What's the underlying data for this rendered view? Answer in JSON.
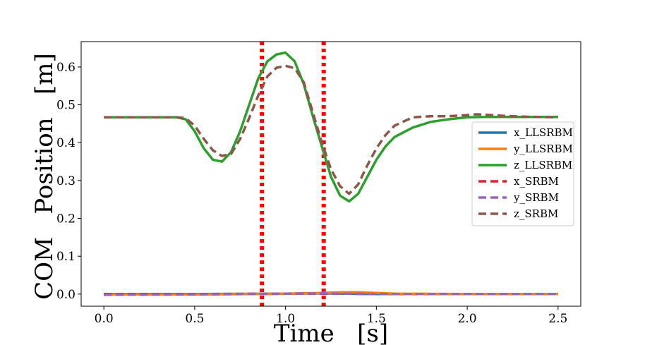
{
  "chart_data": {
    "type": "line",
    "title": "",
    "xlabel": "Time   [s]",
    "ylabel": "COM   Position   [m]",
    "xlim": [
      -0.125,
      2.625
    ],
    "ylim": [
      -0.032,
      0.667
    ],
    "xticks": [
      0.0,
      0.5,
      1.0,
      1.5,
      2.0,
      2.5
    ],
    "xtick_labels": [
      "0.0",
      "0.5",
      "1.0",
      "1.5",
      "2.0",
      "2.5"
    ],
    "yticks": [
      0.0,
      0.1,
      0.2,
      0.3,
      0.4,
      0.5,
      0.6
    ],
    "ytick_labels": [
      "0.0",
      "0.1",
      "0.2",
      "0.3",
      "0.4",
      "0.5",
      "0.6"
    ],
    "grid": false,
    "legend_position": "center-right",
    "vertical_lines": [
      {
        "x": 0.87,
        "color": "#ff0000",
        "style": "dotted"
      },
      {
        "x": 1.21,
        "color": "#ff0000",
        "style": "dotted"
      }
    ],
    "series": [
      {
        "name": "x_LLSRBM",
        "color": "#1f77b4",
        "style": "solid",
        "x": [
          0,
          0.5,
          1.0,
          1.2,
          1.35,
          1.5,
          2.0,
          2.5
        ],
        "y": [
          0.0,
          0.0,
          0.001,
          0.002,
          0.001,
          0.0,
          0.0,
          0.0
        ]
      },
      {
        "name": "y_LLSRBM",
        "color": "#ff7f0e",
        "style": "solid",
        "x": [
          0,
          0.5,
          1.0,
          1.2,
          1.3,
          1.4,
          1.5,
          1.6,
          2.0,
          2.5
        ],
        "y": [
          -0.001,
          -0.001,
          0.001,
          0.003,
          0.005,
          0.005,
          0.003,
          0.001,
          0.0,
          0.0
        ]
      },
      {
        "name": "z_LLSRBM",
        "color": "#2ca02c",
        "style": "solid",
        "x": [
          0,
          0.1,
          0.2,
          0.3,
          0.4,
          0.45,
          0.5,
          0.55,
          0.6,
          0.65,
          0.7,
          0.75,
          0.8,
          0.85,
          0.9,
          0.95,
          1.0,
          1.05,
          1.1,
          1.15,
          1.2,
          1.25,
          1.3,
          1.35,
          1.4,
          1.45,
          1.5,
          1.55,
          1.6,
          1.7,
          1.8,
          1.9,
          2.0,
          2.1,
          2.2,
          2.3,
          2.4,
          2.5
        ],
        "y": [
          0.467,
          0.467,
          0.467,
          0.467,
          0.467,
          0.462,
          0.43,
          0.385,
          0.355,
          0.35,
          0.375,
          0.43,
          0.5,
          0.57,
          0.615,
          0.633,
          0.638,
          0.615,
          0.555,
          0.47,
          0.39,
          0.31,
          0.26,
          0.245,
          0.265,
          0.31,
          0.355,
          0.39,
          0.415,
          0.44,
          0.455,
          0.462,
          0.467,
          0.468,
          0.468,
          0.468,
          0.468,
          0.468
        ]
      },
      {
        "name": "x_SRBM",
        "color": "#d62728",
        "style": "dashed",
        "x": [
          0,
          0.5,
          1.0,
          1.2,
          1.35,
          1.5,
          2.0,
          2.5
        ],
        "y": [
          0.0,
          0.0,
          0.001,
          0.001,
          0.001,
          0.0,
          0.0,
          0.0
        ]
      },
      {
        "name": "y_SRBM",
        "color": "#9467bd",
        "style": "dashed",
        "x": [
          0,
          0.5,
          1.0,
          1.2,
          1.35,
          1.5,
          2.0,
          2.5
        ],
        "y": [
          -0.002,
          -0.001,
          0.001,
          0.002,
          0.001,
          0.0,
          0.0,
          0.0
        ]
      },
      {
        "name": "z_SRBM",
        "color": "#8c564b",
        "style": "dashed",
        "x": [
          0,
          0.1,
          0.2,
          0.3,
          0.4,
          0.45,
          0.5,
          0.55,
          0.6,
          0.65,
          0.7,
          0.75,
          0.8,
          0.85,
          0.9,
          0.95,
          1.0,
          1.05,
          1.1,
          1.15,
          1.2,
          1.25,
          1.3,
          1.35,
          1.4,
          1.45,
          1.5,
          1.55,
          1.6,
          1.7,
          1.8,
          1.9,
          2.0,
          2.05,
          2.1,
          2.2,
          2.3,
          2.4,
          2.5
        ],
        "y": [
          0.467,
          0.467,
          0.467,
          0.467,
          0.467,
          0.465,
          0.445,
          0.41,
          0.38,
          0.365,
          0.37,
          0.41,
          0.465,
          0.525,
          0.575,
          0.598,
          0.603,
          0.597,
          0.56,
          0.48,
          0.4,
          0.33,
          0.285,
          0.265,
          0.29,
          0.34,
          0.385,
          0.42,
          0.445,
          0.467,
          0.47,
          0.47,
          0.473,
          0.475,
          0.474,
          0.471,
          0.469,
          0.468,
          0.467
        ]
      }
    ]
  }
}
